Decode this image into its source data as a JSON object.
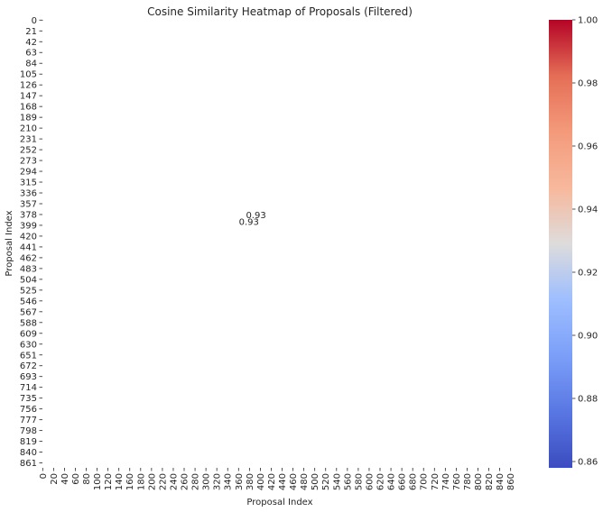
{
  "chart_data": {
    "type": "heatmap",
    "title": "Cosine Similarity Heatmap of Proposals (Filtered)",
    "xlabel": "Proposal Index",
    "ylabel": "Proposal Index",
    "n": 871,
    "x_ticks": [
      0,
      20,
      40,
      60,
      80,
      100,
      120,
      140,
      160,
      180,
      200,
      220,
      240,
      260,
      280,
      300,
      320,
      340,
      360,
      380,
      400,
      420,
      440,
      460,
      480,
      500,
      520,
      540,
      560,
      580,
      600,
      620,
      640,
      660,
      680,
      700,
      720,
      740,
      760,
      780,
      800,
      820,
      840,
      860
    ],
    "y_ticks": [
      0,
      21,
      42,
      63,
      84,
      105,
      126,
      147,
      168,
      189,
      210,
      231,
      252,
      273,
      294,
      315,
      336,
      357,
      378,
      399,
      420,
      441,
      462,
      483,
      504,
      525,
      546,
      567,
      588,
      609,
      630,
      651,
      672,
      693,
      714,
      735,
      756,
      777,
      798,
      819,
      840,
      861
    ],
    "x_tick_labels": [
      "0",
      "20",
      "40",
      "60",
      "80",
      "100",
      "120",
      "140",
      "160",
      "180",
      "200",
      "220",
      "240",
      "260",
      "280",
      "300",
      "320",
      "340",
      "360",
      "380",
      "400",
      "420",
      "440",
      "460",
      "480",
      "500",
      "520",
      "540",
      "560",
      "580",
      "600",
      "620",
      "640",
      "660",
      "680",
      "700",
      "720",
      "740",
      "760",
      "780",
      "800",
      "820",
      "840",
      "860"
    ],
    "y_tick_labels": [
      "0",
      "21",
      "42",
      "63",
      "84",
      "105",
      "126",
      "147",
      "168",
      "189",
      "210",
      "231",
      "252",
      "273",
      "294",
      "315",
      "336",
      "357",
      "378",
      "399",
      "420",
      "441",
      "462",
      "483",
      "504",
      "525",
      "546",
      "567",
      "588",
      "609",
      "630",
      "651",
      "672",
      "693",
      "714",
      "735",
      "756",
      "777",
      "798",
      "819",
      "840",
      "861"
    ],
    "cells": [
      {
        "x": 0,
        "y": 0,
        "value": 1.0,
        "label": ""
      },
      {
        "x": 379,
        "y": 392,
        "value": 0.93,
        "label": "0.93"
      },
      {
        "x": 392,
        "y": 379,
        "value": 0.93,
        "label": "0.93"
      }
    ],
    "colormap": "coolwarm",
    "colorbar": {
      "min": 0.858,
      "max": 1.0,
      "ticks": [
        0.86,
        0.88,
        0.9,
        0.92,
        0.94,
        0.96,
        0.98,
        1.0
      ],
      "tick_labels": [
        "0.86",
        "0.88",
        "0.90",
        "0.92",
        "0.94",
        "0.96",
        "0.98",
        "1.00"
      ]
    },
    "grid": false,
    "colorbar_placement": "right"
  }
}
